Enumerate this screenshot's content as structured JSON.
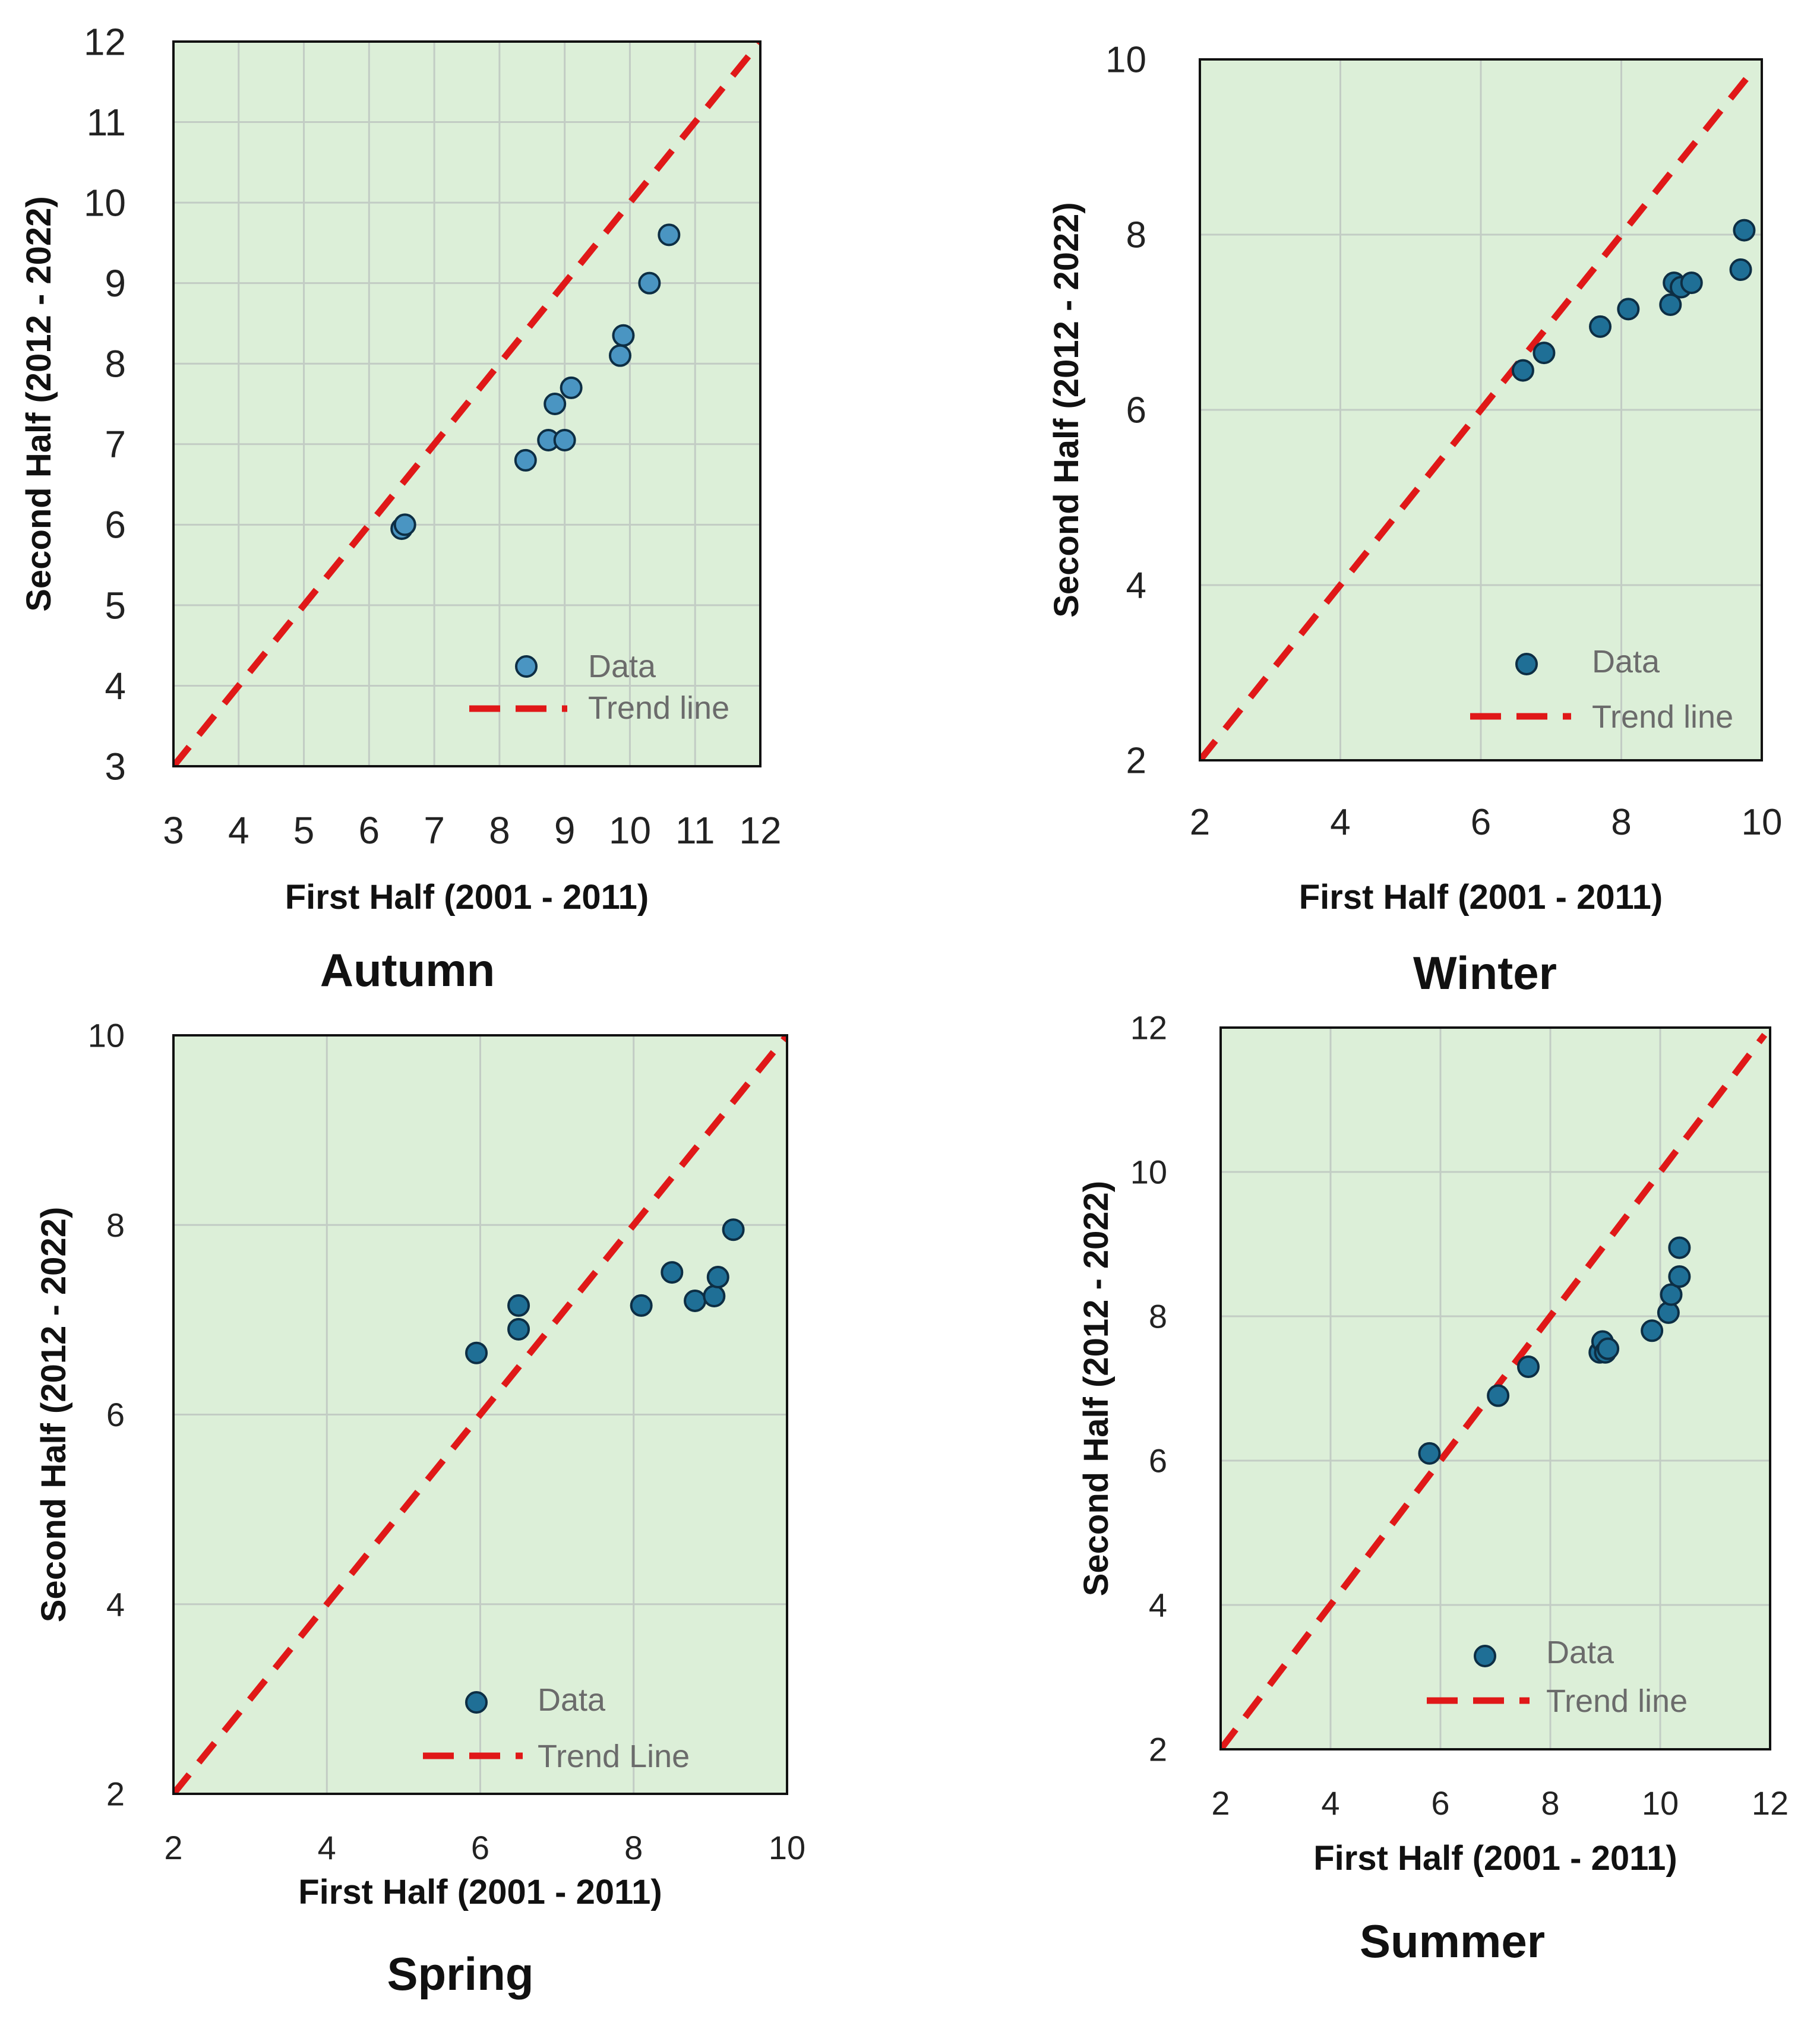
{
  "colors": {
    "plot_bg": "#dcefd8",
    "grid": "#c2ccc4",
    "frame": "#111111",
    "trend": "#e01818",
    "point_fill": "#1f6f96",
    "point_stroke": "#0d2e44",
    "point_fill_light": "#4a95c2"
  },
  "chart_data": [
    {
      "type": "scatter",
      "title": "Autumn",
      "xlabel": "First Half (2001 - 2011)",
      "ylabel": "Second  Half (2012 - 2022)",
      "xlim": [
        3,
        12
      ],
      "ylim": [
        3,
        12
      ],
      "xticks": [
        "3",
        "4",
        "5",
        "6",
        "7",
        "8",
        "9",
        "10",
        "11",
        "12"
      ],
      "yticks": [
        "3",
        "4",
        "5",
        "6",
        "7",
        "8",
        "9",
        "10",
        "11",
        "12"
      ],
      "grid": true,
      "legend": {
        "position": "bottom-right",
        "data_label": "Data",
        "trend_label": "Trend line"
      },
      "trend": {
        "x": [
          3,
          12
        ],
        "y": [
          3,
          12
        ]
      },
      "series": [
        {
          "name": "Data",
          "x": [
            6.5,
            6.55,
            8.4,
            8.75,
            8.85,
            9.0,
            9.1,
            9.85,
            9.9,
            10.3,
            10.6
          ],
          "y": [
            5.95,
            6.0,
            6.8,
            7.05,
            7.5,
            7.05,
            7.7,
            8.1,
            8.35,
            9.0,
            9.6
          ]
        }
      ]
    },
    {
      "type": "scatter",
      "title": "Winter",
      "xlabel": "First Half (2001 - 2011)",
      "ylabel": "Second Half (2012 - 2022)",
      "xlim": [
        2,
        10
      ],
      "ylim": [
        2,
        10
      ],
      "xticks": [
        "2",
        "4",
        "6",
        "8",
        "10"
      ],
      "yticks": [
        "2",
        "4",
        "6",
        "8",
        "10"
      ],
      "grid": true,
      "legend": {
        "position": "bottom-right",
        "data_label": "Data",
        "trend_label": "Trend line"
      },
      "trend": {
        "x": [
          2,
          9.8
        ],
        "y": [
          2,
          9.8
        ]
      },
      "series": [
        {
          "name": "Data",
          "x": [
            6.6,
            6.9,
            7.7,
            8.1,
            8.7,
            8.75,
            8.85,
            9.0,
            9.7,
            9.75
          ],
          "y": [
            6.45,
            6.65,
            6.95,
            7.15,
            7.2,
            7.45,
            7.4,
            7.45,
            7.6,
            8.05
          ]
        }
      ]
    },
    {
      "type": "scatter",
      "title": "Spring",
      "xlabel": "First Half (2001 - 2011)",
      "ylabel": "Second Half (2012 - 2022)",
      "xlim": [
        2,
        10
      ],
      "ylim": [
        2,
        10
      ],
      "xticks": [
        "2",
        "4",
        "6",
        "8",
        "10"
      ],
      "yticks": [
        "2",
        "4",
        "6",
        "8",
        "10"
      ],
      "grid": true,
      "legend": {
        "position": "bottom-right",
        "data_label": "Data",
        "trend_label": "Trend Line"
      },
      "trend": {
        "x": [
          2,
          10
        ],
        "y": [
          2,
          10
        ]
      },
      "series": [
        {
          "name": "Data",
          "x": [
            5.95,
            6.5,
            6.5,
            8.1,
            8.5,
            8.8,
            9.05,
            9.1,
            9.3
          ],
          "y": [
            6.65,
            6.9,
            7.15,
            7.15,
            7.5,
            7.2,
            7.25,
            7.45,
            7.95
          ]
        }
      ]
    },
    {
      "type": "scatter",
      "title": "Summer",
      "xlabel": "First Half (2001 - 2011)",
      "ylabel": "Second Half (2012 - 2022)",
      "xlim": [
        2,
        12
      ],
      "ylim": [
        2,
        12
      ],
      "xticks": [
        "2",
        "4",
        "6",
        "8",
        "10",
        "12"
      ],
      "yticks": [
        "2",
        "4",
        "6",
        "8",
        "10",
        "12"
      ],
      "grid": true,
      "legend": {
        "position": "bottom-right",
        "data_label": "Data",
        "trend_label": "Trend line"
      },
      "trend": {
        "x": [
          2,
          11.9
        ],
        "y": [
          2,
          11.9
        ]
      },
      "series": [
        {
          "name": "Data",
          "x": [
            5.8,
            7.05,
            7.6,
            8.9,
            8.95,
            9.0,
            9.05,
            9.85,
            10.15,
            10.2,
            10.35,
            10.35
          ],
          "y": [
            6.1,
            6.9,
            7.3,
            7.5,
            7.65,
            7.5,
            7.55,
            7.8,
            8.05,
            8.3,
            8.55,
            8.95
          ]
        }
      ]
    }
  ]
}
